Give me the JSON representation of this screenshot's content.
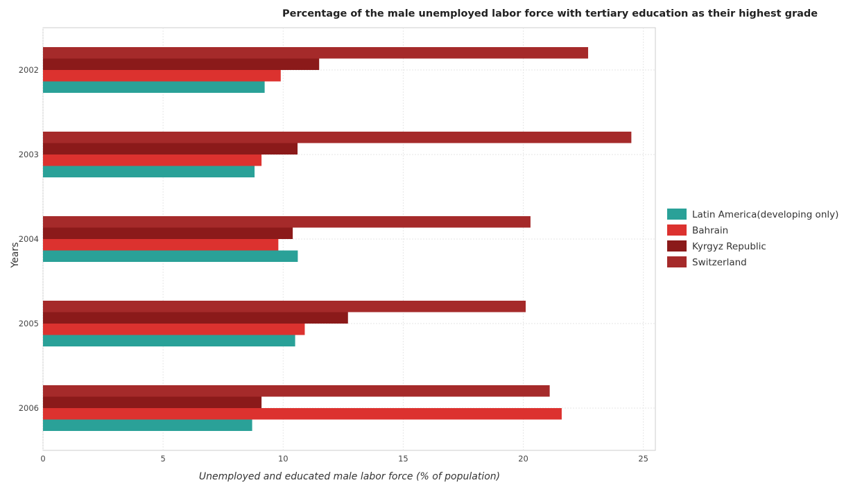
{
  "chart_data": {
    "type": "bar",
    "orientation": "horizontal",
    "title": "Percentage of the male unemployed labor force with tertiary education as their highest grade",
    "xlabel": "Unemployed and educated male labor force (% of population)",
    "ylabel": "Years",
    "categories": [
      "2002",
      "2003",
      "2004",
      "2005",
      "2006"
    ],
    "xlim": [
      0,
      25.5
    ],
    "xticks": [
      0,
      5,
      10,
      15,
      20,
      25
    ],
    "grid": true,
    "legend_position": "right",
    "series": [
      {
        "name": "Latin America(developing only)",
        "color": "#2aa198",
        "values": [
          9.23,
          8.81,
          10.61,
          10.5,
          8.71
        ]
      },
      {
        "name": "Bahrain",
        "color": "#dc322f",
        "values": [
          9.9,
          9.1,
          9.8,
          10.9,
          21.6
        ]
      },
      {
        "name": "Kyrgyz Republic",
        "color": "#8b1a1a",
        "values": [
          11.5,
          10.6,
          10.4,
          12.7,
          9.1
        ]
      },
      {
        "name": "Switzerland",
        "color": "#a52a2a",
        "values": [
          22.7,
          24.5,
          20.3,
          20.1,
          21.1
        ]
      }
    ]
  }
}
